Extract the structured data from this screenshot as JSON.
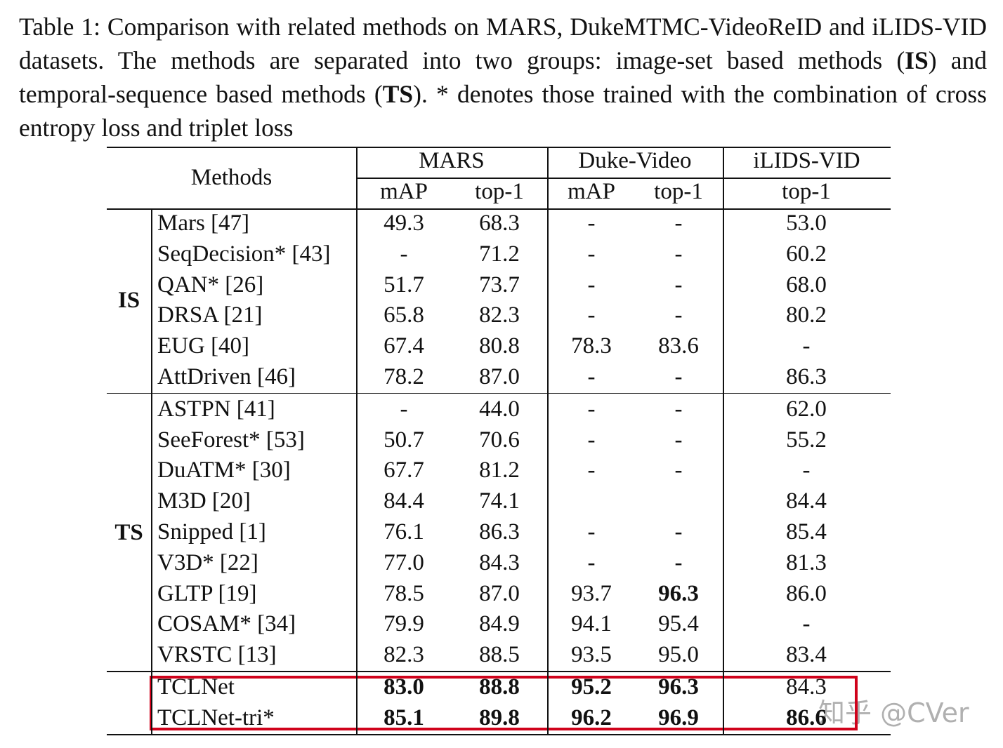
{
  "caption": [
    "Table 1: Comparison with related methods on MARS, DukeMTMC-VideoReID and iLIDS-VID datasets. The methods are separated into two groups: image-set based methods (",
    "IS",
    ") and temporal-sequence based methods (",
    "TS",
    "). * denotes those trained with the combination of cross entropy loss and triplet loss"
  ],
  "header": {
    "methods": "Methods",
    "datasets": [
      {
        "name": "MARS",
        "metrics": [
          "mAP",
          "top-1"
        ]
      },
      {
        "name": "Duke-Video",
        "metrics": [
          "mAP",
          "top-1"
        ]
      },
      {
        "name": "iLIDS-VID",
        "metrics": [
          "top-1"
        ]
      }
    ]
  },
  "groups": [
    {
      "label": "IS",
      "rows": [
        {
          "method": "Mars [47]",
          "values": [
            "49.3",
            "68.3",
            "-",
            "-",
            "53.0"
          ]
        },
        {
          "method": "SeqDecision* [43]",
          "values": [
            "-",
            "71.2",
            "-",
            "-",
            "60.2"
          ]
        },
        {
          "method": "QAN* [26]",
          "values": [
            "51.7",
            "73.7",
            "-",
            "-",
            "68.0"
          ]
        },
        {
          "method": "DRSA [21]",
          "values": [
            "65.8",
            "82.3",
            "-",
            "-",
            "80.2"
          ]
        },
        {
          "method": "EUG [40]",
          "values": [
            "67.4",
            "80.8",
            "78.3",
            "83.6",
            "-"
          ]
        },
        {
          "method": "AttDriven [46]",
          "values": [
            "78.2",
            "87.0",
            "-",
            "-",
            "86.3"
          ]
        }
      ]
    },
    {
      "label": "TS",
      "rows": [
        {
          "method": "ASTPN [41]",
          "values": [
            "-",
            "44.0",
            "-",
            "-",
            "62.0"
          ]
        },
        {
          "method": "SeeForest* [53]",
          "values": [
            "50.7",
            "70.6",
            "-",
            "-",
            "55.2"
          ]
        },
        {
          "method": "DuATM* [30]",
          "values": [
            "67.7",
            "81.2",
            "-",
            "-",
            "-"
          ]
        },
        {
          "method": "M3D [20]",
          "values": [
            "84.4",
            "74.1",
            "",
            "",
            "84.4"
          ]
        },
        {
          "method": "Snipped [1]",
          "values": [
            "76.1",
            "86.3",
            "-",
            "-",
            "85.4"
          ]
        },
        {
          "method": "V3D* [22]",
          "values": [
            "77.0",
            "84.3",
            "-",
            "-",
            "81.3"
          ]
        },
        {
          "method": "GLTP [19]",
          "values": [
            "78.5",
            "87.0",
            "93.7",
            "96.3",
            "86.0"
          ],
          "bold": [
            3
          ]
        },
        {
          "method": "COSAM* [34]",
          "values": [
            "79.9",
            "84.9",
            "94.1",
            "95.4",
            "-"
          ]
        },
        {
          "method": "VRSTC [13]",
          "values": [
            "82.3",
            "88.5",
            "93.5",
            "95.0",
            "83.4"
          ]
        }
      ]
    },
    {
      "highlight": true,
      "rows": [
        {
          "method": "TCLNet",
          "values": [
            "83.0",
            "88.8",
            "95.2",
            "96.3",
            "84.3"
          ],
          "bold": [
            0,
            1,
            2,
            3
          ]
        },
        {
          "method": "TCLNet-tri*",
          "values": [
            "85.1",
            "89.8",
            "96.2",
            "96.9",
            "86.6"
          ],
          "bold": [
            0,
            1,
            2,
            3,
            4
          ]
        }
      ]
    }
  ],
  "watermark": "知乎 @CVer"
}
